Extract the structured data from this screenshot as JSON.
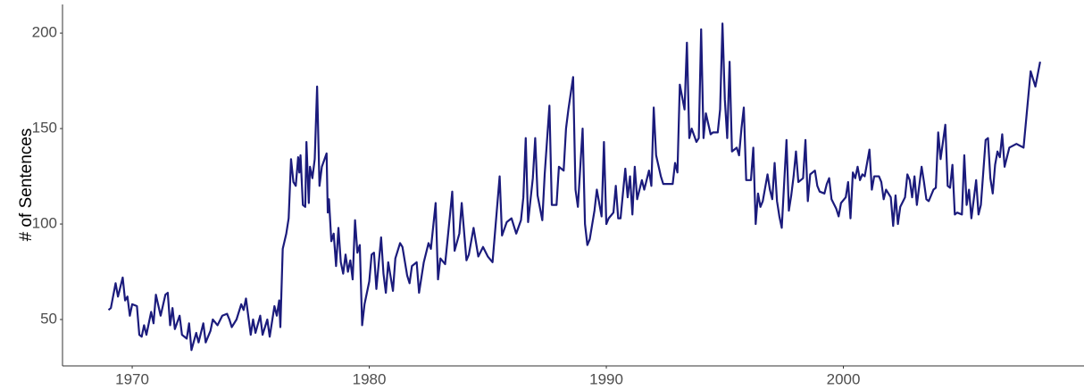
{
  "chart_data": {
    "type": "line",
    "y_label": "# of Sentences",
    "x": [
      1969.0,
      1969.1,
      1969.3,
      1969.4,
      1969.6,
      1969.7,
      1969.8,
      1969.9,
      1970.0,
      1970.2,
      1970.3,
      1970.4,
      1970.5,
      1970.6,
      1970.8,
      1970.9,
      1971.0,
      1971.2,
      1971.4,
      1971.5,
      1971.6,
      1971.7,
      1971.8,
      1972.0,
      1972.1,
      1972.3,
      1972.4,
      1972.5,
      1972.7,
      1972.8,
      1973.0,
      1973.1,
      1973.3,
      1973.4,
      1973.6,
      1973.8,
      1974.0,
      1974.1,
      1974.2,
      1974.4,
      1974.6,
      1974.7,
      1974.8,
      1975.0,
      1975.1,
      1975.2,
      1975.4,
      1975.5,
      1975.7,
      1975.8,
      1976.0,
      1976.1,
      1976.2,
      1976.25,
      1976.35,
      1976.5,
      1976.6,
      1976.7,
      1976.8,
      1976.9,
      1977.0,
      1977.05,
      1977.1,
      1977.2,
      1977.3,
      1977.35,
      1977.45,
      1977.5,
      1977.6,
      1977.7,
      1977.8,
      1977.9,
      1978.0,
      1978.2,
      1978.25,
      1978.3,
      1978.4,
      1978.5,
      1978.6,
      1978.7,
      1978.8,
      1978.9,
      1979.0,
      1979.1,
      1979.2,
      1979.3,
      1979.4,
      1979.5,
      1979.6,
      1979.7,
      1979.8,
      1980.0,
      1980.1,
      1980.2,
      1980.3,
      1980.5,
      1980.6,
      1980.7,
      1980.8,
      1981.0,
      1981.1,
      1981.3,
      1981.4,
      1981.6,
      1981.7,
      1981.8,
      1982.0,
      1982.1,
      1982.3,
      1982.5,
      1982.6,
      1982.8,
      1982.9,
      1983.0,
      1983.2,
      1983.4,
      1983.5,
      1983.6,
      1983.8,
      1983.9,
      1984.1,
      1984.2,
      1984.4,
      1984.6,
      1984.8,
      1985.0,
      1985.2,
      1985.3,
      1985.5,
      1985.6,
      1985.8,
      1986.0,
      1986.2,
      1986.4,
      1986.5,
      1986.6,
      1986.7,
      1986.9,
      1987.0,
      1987.1,
      1987.3,
      1987.4,
      1987.6,
      1987.7,
      1987.9,
      1988.0,
      1988.2,
      1988.3,
      1988.4,
      1988.6,
      1988.7,
      1988.8,
      1989.0,
      1989.1,
      1989.2,
      1989.3,
      1989.5,
      1989.6,
      1989.8,
      1989.9,
      1990.0,
      1990.1,
      1990.3,
      1990.4,
      1990.5,
      1990.6,
      1990.8,
      1990.9,
      1991.0,
      1991.1,
      1991.2,
      1991.3,
      1991.5,
      1991.6,
      1991.8,
      1991.9,
      1992.0,
      1992.1,
      1992.3,
      1992.4,
      1992.6,
      1992.8,
      1992.9,
      1993.0,
      1993.1,
      1993.3,
      1993.4,
      1993.5,
      1993.6,
      1993.8,
      1993.9,
      1994.0,
      1994.1,
      1994.2,
      1994.4,
      1994.5,
      1994.7,
      1994.8,
      1994.9,
      1995.0,
      1995.1,
      1995.2,
      1995.3,
      1995.5,
      1995.6,
      1995.7,
      1995.8,
      1995.9,
      1996.1,
      1996.2,
      1996.3,
      1996.4,
      1996.5,
      1996.6,
      1996.8,
      1996.9,
      1997.0,
      1997.1,
      1997.2,
      1997.3,
      1997.4,
      1997.6,
      1997.7,
      1997.8,
      1997.9,
      1998.0,
      1998.1,
      1998.3,
      1998.4,
      1998.5,
      1998.6,
      1998.8,
      1998.9,
      1999.0,
      1999.2,
      1999.3,
      1999.4,
      1999.5,
      1999.7,
      1999.8,
      1999.9,
      2000.1,
      2000.2,
      2000.3,
      2000.4,
      2000.5,
      2000.6,
      2000.7,
      2000.8,
      2000.9,
      2001.1,
      2001.2,
      2001.3,
      2001.5,
      2001.6,
      2001.7,
      2001.8,
      2002.0,
      2002.1,
      2002.2,
      2002.3,
      2002.4,
      2002.6,
      2002.7,
      2002.8,
      2002.9,
      2003.0,
      2003.1,
      2003.3,
      2003.4,
      2003.5,
      2003.6,
      2003.8,
      2003.9,
      2004.0,
      2004.1,
      2004.3,
      2004.4,
      2004.5,
      2004.6,
      2004.7,
      2004.8,
      2005.0,
      2005.1,
      2005.2,
      2005.3,
      2005.4,
      2005.6,
      2005.7,
      2005.8,
      2005.9,
      2006.0,
      2006.1,
      2006.2,
      2006.3,
      2006.4,
      2006.5,
      2006.6,
      2006.7,
      2006.8,
      2007.0,
      2007.3,
      2007.6,
      2007.9,
      2008.1,
      2008.3
    ],
    "series": [
      {
        "color": "#1b1b7c",
        "values": [
          55,
          56,
          69,
          62,
          72,
          60,
          62,
          52,
          58,
          57,
          42,
          41,
          47,
          42,
          54,
          48,
          63,
          52,
          63,
          64,
          47,
          56,
          45,
          52,
          42,
          40,
          48,
          34,
          43,
          38,
          48,
          38,
          44,
          50,
          47,
          52,
          53,
          50,
          46,
          50,
          58,
          55,
          61,
          42,
          50,
          43,
          52,
          42,
          50,
          41,
          57,
          52,
          60,
          46,
          87,
          95,
          103,
          134,
          122,
          120,
          135,
          127,
          136,
          110,
          109,
          143,
          111,
          130,
          124,
          134,
          172,
          120,
          130,
          137,
          106,
          113,
          91,
          95,
          78,
          98,
          80,
          74,
          84,
          75,
          81,
          71,
          102,
          85,
          89,
          47,
          58,
          70,
          84,
          85,
          66,
          93,
          74,
          64,
          80,
          65,
          82,
          90,
          88,
          73,
          69,
          78,
          80,
          64,
          80,
          90,
          87,
          111,
          71,
          82,
          79,
          104,
          117,
          86,
          95,
          111,
          81,
          84,
          98,
          83,
          88,
          83,
          80,
          95,
          125,
          94,
          101,
          103,
          95,
          102,
          114,
          145,
          101,
          124,
          145,
          115,
          102,
          126,
          162,
          110,
          110,
          130,
          128,
          150,
          160,
          177,
          118,
          109,
          150,
          100,
          89,
          92,
          107,
          118,
          104,
          143,
          100,
          103,
          106,
          120,
          103,
          103,
          129,
          114,
          125,
          105,
          130,
          113,
          123,
          118,
          128,
          120,
          161,
          136,
          125,
          121,
          121,
          121,
          132,
          127,
          173,
          160,
          195,
          145,
          150,
          143,
          145,
          202,
          145,
          158,
          147,
          148,
          148,
          160,
          205,
          165,
          145,
          185,
          138,
          140,
          136,
          150,
          161,
          123,
          123,
          140,
          100,
          116,
          109,
          112,
          126,
          118,
          113,
          132,
          112,
          104,
          98,
          144,
          107,
          115,
          125,
          138,
          122,
          124,
          144,
          112,
          126,
          128,
          120,
          117,
          116,
          121,
          124,
          113,
          108,
          104,
          111,
          114,
          122,
          103,
          127,
          124,
          130,
          123,
          126,
          125,
          139,
          118,
          125,
          125,
          122,
          113,
          118,
          114,
          99,
          115,
          100,
          109,
          114,
          126,
          123,
          114,
          125,
          110,
          130,
          122,
          113,
          112,
          118,
          119,
          148,
          134,
          152,
          120,
          119,
          131,
          105,
          106,
          105,
          136,
          110,
          118,
          103,
          123,
          105,
          110,
          127,
          144,
          145,
          124,
          116,
          131,
          138,
          135,
          147,
          130,
          140,
          142,
          140,
          180,
          172,
          185
        ]
      }
    ],
    "xlim": [
      1967.06,
      2010.15
    ],
    "ylim": [
      25.7,
      215
    ],
    "xticks": [
      1970,
      1980,
      1990,
      2000
    ],
    "yticks": [
      50,
      100,
      150,
      200
    ]
  }
}
